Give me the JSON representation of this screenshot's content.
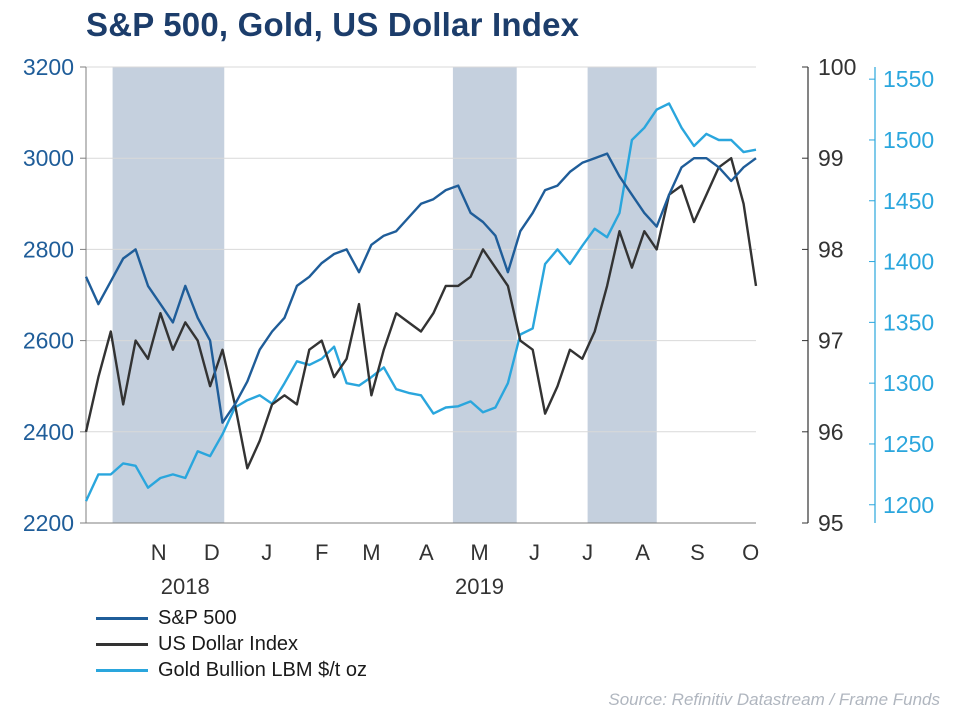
{
  "title": "S&P 500, Gold, US Dollar Index",
  "source": "Source: Refinitiv Datastream / Frame Funds",
  "colors": {
    "sp500": "#1f5d99",
    "dollar": "#333333",
    "gold": "#2aa6dd",
    "shade": "#c5d0de",
    "grid": "#d9d9d9",
    "left_axis_text": "#1f5d99",
    "mid_axis_text": "#333333",
    "right_axis_text": "#2aa6dd"
  },
  "chart_data": {
    "type": "line",
    "x_range": [
      "2018-10-05",
      "2019-10-18"
    ],
    "month_labels": [
      "N",
      "D",
      "J",
      "F",
      "M",
      "A",
      "M",
      "J",
      "J",
      "A",
      "S",
      "O"
    ],
    "month_label_dates": [
      "2018-11-15",
      "2018-12-15",
      "2019-01-15",
      "2019-02-15",
      "2019-03-15",
      "2019-04-15",
      "2019-05-15",
      "2019-06-15",
      "2019-07-15",
      "2019-08-15",
      "2019-09-15",
      "2019-10-15"
    ],
    "year_labels": [
      "2018",
      "2019"
    ],
    "year_label_dates": [
      "2018-11-30",
      "2019-05-15"
    ],
    "shaded_periods": [
      {
        "start": "2018-10-20",
        "end": "2018-12-22"
      },
      {
        "start": "2019-04-30",
        "end": "2019-06-05"
      },
      {
        "start": "2019-07-15",
        "end": "2019-08-23"
      }
    ],
    "axes": {
      "left": {
        "ylim": [
          2200,
          3200
        ],
        "ticks": [
          "2200",
          "2400",
          "2600",
          "2800",
          "3000",
          "3200"
        ]
      },
      "middle": {
        "ylim": [
          95,
          100
        ],
        "ticks": [
          "95",
          "96",
          "97",
          "98",
          "99",
          "100"
        ]
      },
      "right": {
        "ylim": [
          1185,
          1560
        ],
        "ticks": [
          "1200",
          "1250",
          "1300",
          "1350",
          "1400",
          "1450",
          "1500",
          "1550"
        ]
      }
    },
    "series": [
      {
        "name": "S&P 500",
        "axis": "left",
        "x": [
          "2018-10-05",
          "2018-10-12",
          "2018-10-19",
          "2018-10-26",
          "2018-11-02",
          "2018-11-09",
          "2018-11-16",
          "2018-11-23",
          "2018-11-30",
          "2018-12-07",
          "2018-12-14",
          "2018-12-21",
          "2018-12-28",
          "2019-01-04",
          "2019-01-11",
          "2019-01-18",
          "2019-01-25",
          "2019-02-01",
          "2019-02-08",
          "2019-02-15",
          "2019-02-22",
          "2019-03-01",
          "2019-03-08",
          "2019-03-15",
          "2019-03-22",
          "2019-03-29",
          "2019-04-05",
          "2019-04-12",
          "2019-04-19",
          "2019-04-26",
          "2019-05-03",
          "2019-05-10",
          "2019-05-17",
          "2019-05-24",
          "2019-05-31",
          "2019-06-07",
          "2019-06-14",
          "2019-06-21",
          "2019-06-28",
          "2019-07-05",
          "2019-07-12",
          "2019-07-19",
          "2019-07-26",
          "2019-08-02",
          "2019-08-09",
          "2019-08-16",
          "2019-08-23",
          "2019-08-30",
          "2019-09-06",
          "2019-09-13",
          "2019-09-20",
          "2019-09-27",
          "2019-10-04",
          "2019-10-11",
          "2019-10-18"
        ],
        "values": [
          2740,
          2680,
          2730,
          2780,
          2800,
          2720,
          2680,
          2640,
          2720,
          2650,
          2600,
          2420,
          2460,
          2510,
          2580,
          2620,
          2650,
          2720,
          2740,
          2770,
          2790,
          2800,
          2750,
          2810,
          2830,
          2840,
          2870,
          2900,
          2910,
          2930,
          2940,
          2880,
          2860,
          2830,
          2750,
          2840,
          2880,
          2930,
          2940,
          2970,
          2990,
          3000,
          3010,
          2960,
          2920,
          2880,
          2850,
          2920,
          2980,
          3000,
          3000,
          2980,
          2950,
          2980,
          3000
        ]
      },
      {
        "name": "US Dollar Index",
        "axis": "middle",
        "x": [
          "2018-10-05",
          "2018-10-12",
          "2018-10-19",
          "2018-10-26",
          "2018-11-02",
          "2018-11-09",
          "2018-11-16",
          "2018-11-23",
          "2018-11-30",
          "2018-12-07",
          "2018-12-14",
          "2018-12-21",
          "2018-12-28",
          "2019-01-04",
          "2019-01-11",
          "2019-01-18",
          "2019-01-25",
          "2019-02-01",
          "2019-02-08",
          "2019-02-15",
          "2019-02-22",
          "2019-03-01",
          "2019-03-08",
          "2019-03-15",
          "2019-03-22",
          "2019-03-29",
          "2019-04-05",
          "2019-04-12",
          "2019-04-19",
          "2019-04-26",
          "2019-05-03",
          "2019-05-10",
          "2019-05-17",
          "2019-05-24",
          "2019-05-31",
          "2019-06-07",
          "2019-06-14",
          "2019-06-21",
          "2019-06-28",
          "2019-07-05",
          "2019-07-12",
          "2019-07-19",
          "2019-07-26",
          "2019-08-02",
          "2019-08-09",
          "2019-08-16",
          "2019-08-23",
          "2019-08-30",
          "2019-09-06",
          "2019-09-13",
          "2019-09-20",
          "2019-09-27",
          "2019-10-04",
          "2019-10-11",
          "2019-10-18"
        ],
        "values": [
          96.0,
          96.6,
          97.1,
          96.3,
          97.0,
          96.8,
          97.3,
          96.9,
          97.2,
          97.0,
          96.5,
          96.9,
          96.3,
          95.6,
          95.9,
          96.3,
          96.4,
          96.3,
          96.9,
          97.0,
          96.6,
          96.8,
          97.4,
          96.4,
          96.9,
          97.3,
          97.2,
          97.1,
          97.3,
          97.6,
          97.6,
          97.7,
          98.0,
          97.8,
          97.6,
          97.0,
          96.9,
          96.2,
          96.5,
          96.9,
          96.8,
          97.1,
          97.6,
          98.2,
          97.8,
          98.2,
          98.0,
          98.6,
          98.7,
          98.3,
          98.6,
          98.9,
          99.0,
          98.5,
          97.6
        ]
      },
      {
        "name": "Gold Bullion LBM $/t oz",
        "axis": "right",
        "x": [
          "2018-10-05",
          "2018-10-12",
          "2018-10-19",
          "2018-10-26",
          "2018-11-02",
          "2018-11-09",
          "2018-11-16",
          "2018-11-23",
          "2018-11-30",
          "2018-12-07",
          "2018-12-14",
          "2018-12-21",
          "2018-12-28",
          "2019-01-04",
          "2019-01-11",
          "2019-01-18",
          "2019-01-25",
          "2019-02-01",
          "2019-02-08",
          "2019-02-15",
          "2019-02-22",
          "2019-03-01",
          "2019-03-08",
          "2019-03-15",
          "2019-03-22",
          "2019-03-29",
          "2019-04-05",
          "2019-04-12",
          "2019-04-19",
          "2019-04-26",
          "2019-05-03",
          "2019-05-10",
          "2019-05-17",
          "2019-05-24",
          "2019-05-31",
          "2019-06-07",
          "2019-06-14",
          "2019-06-21",
          "2019-06-28",
          "2019-07-05",
          "2019-07-12",
          "2019-07-19",
          "2019-07-26",
          "2019-08-02",
          "2019-08-09",
          "2019-08-16",
          "2019-08-23",
          "2019-08-30",
          "2019-09-06",
          "2019-09-13",
          "2019-09-20",
          "2019-09-27",
          "2019-10-04",
          "2019-10-11",
          "2019-10-18"
        ],
        "values": [
          1203,
          1225,
          1225,
          1234,
          1232,
          1214,
          1222,
          1225,
          1222,
          1244,
          1240,
          1258,
          1280,
          1286,
          1290,
          1283,
          1300,
          1318,
          1315,
          1320,
          1330,
          1300,
          1298,
          1305,
          1313,
          1295,
          1292,
          1290,
          1275,
          1280,
          1281,
          1285,
          1276,
          1280,
          1300,
          1340,
          1345,
          1398,
          1410,
          1398,
          1413,
          1427,
          1420,
          1440,
          1500,
          1510,
          1525,
          1530,
          1510,
          1495,
          1505,
          1500,
          1500,
          1490,
          1492
        ]
      }
    ]
  }
}
